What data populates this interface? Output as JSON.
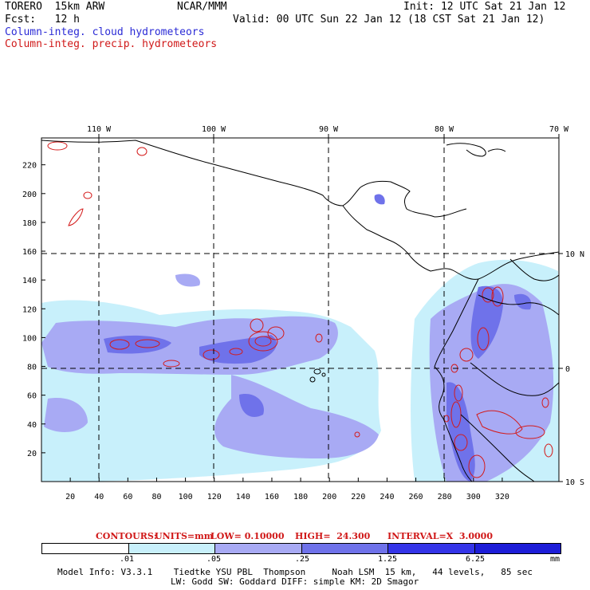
{
  "header": {
    "model_line": "TORERO  15km ARW",
    "org": "NCAR/MMM",
    "init": "Init: 12 UTC Sat 21 Jan 12",
    "fcst_line": "Fcst:   12 h",
    "valid": "Valid: 00 UTC Sun 22 Jan 12 (18 CST Sat 21 Jan 12)",
    "field_cloud": "Column-integ. cloud hydrometeors",
    "field_precip": "Column-integ. precip. hydrometeors"
  },
  "colors": {
    "cloud_field": "#2b2bd6",
    "precip_field": "#d01818",
    "level_1": "#c8f0fb",
    "level_2": "#a8aaf4",
    "level_3": "#6f72ea",
    "level_4": "#3434e8",
    "level_5": "#1d1dd8"
  },
  "axes": {
    "top_lon_labels": [
      "110 W",
      "100 W",
      "90 W",
      "80 W",
      "70 W"
    ],
    "right_lat_labels": [
      "10 N",
      "0",
      "10 S"
    ],
    "left_ticks": [
      "220",
      "200",
      "180",
      "160",
      "140",
      "120",
      "100",
      "80",
      "60",
      "40",
      "20"
    ],
    "bottom_ticks": [
      "20",
      "40",
      "60",
      "80",
      "100",
      "120",
      "140",
      "160",
      "180",
      "200",
      "220",
      "240",
      "260",
      "280",
      "300",
      "320"
    ]
  },
  "contours": {
    "label": "CONTOURS:",
    "units": "UNITS=mm",
    "low": "LOW= 0.10000",
    "high": "HIGH=  24.300",
    "interval": "INTERVAL=X  3.0000"
  },
  "legend": {
    "levels": [
      ".01",
      ".05",
      ".25",
      "1.25",
      "6.25"
    ],
    "unit": "mm"
  },
  "footer": {
    "line1": "Model Info: V3.3.1    Tiedtke YSU PBL  Thompson     Noah LSM  15 km,   44 levels,   85 sec",
    "line2": "LW: Godd SW: Goddard DIFF: simple KM: 2D Smagor"
  }
}
